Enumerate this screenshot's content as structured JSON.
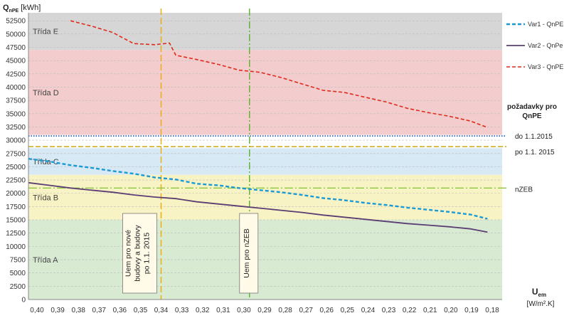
{
  "chart_data": {
    "type": "line",
    "ylabel_main": "Q",
    "ylabel_sub": "nPE",
    "ylabel_unit": "[kWh]",
    "xlabel_main": "U",
    "xlabel_sub": "em",
    "xlabel_unit": "[W/m².K]",
    "x_ticks": [
      "0,40",
      "0,39",
      "0,38",
      "0,37",
      "0,36",
      "0,35",
      "0,34",
      "0,33",
      "0,32",
      "0,31",
      "0,30",
      "0,29",
      "0,28",
      "0,27",
      "0,26",
      "0,25",
      "0,24",
      "0,23",
      "0,22",
      "0,21",
      "0,20",
      "0,19",
      "0,18"
    ],
    "y_ticks": [
      0,
      2500,
      5000,
      7500,
      10000,
      12500,
      15000,
      17500,
      20000,
      22500,
      25000,
      27500,
      30000,
      32500,
      35000,
      37500,
      40000,
      42500,
      45000,
      47500,
      50000,
      52500
    ],
    "xlim": [
      0.4,
      0.175
    ],
    "ylim": [
      0,
      54000
    ],
    "grid": true,
    "classes": [
      {
        "label": "Třída A",
        "from": 0,
        "to": 15000,
        "color": "#d9ead3"
      },
      {
        "label": "Třída B",
        "from": 15000,
        "to": 23500,
        "color": "#f7f3c4"
      },
      {
        "label": "Třída C",
        "from": 23500,
        "to": 28500,
        "color": "#d6e9f5"
      },
      {
        "label": "Třída D",
        "from": 31000,
        "to": 47000,
        "color": "#f3cdcd"
      },
      {
        "label": "Třída E",
        "from": 47000,
        "to": 54000,
        "color": "#d6d6d6"
      }
    ],
    "series": [
      {
        "name": "Var1 - QnPE",
        "color": "#1b9ad6",
        "x": [
          0.4,
          0.39,
          0.38,
          0.37,
          0.36,
          0.35,
          0.34,
          0.33,
          0.32,
          0.31,
          0.3,
          0.29,
          0.28,
          0.27,
          0.26,
          0.25,
          0.24,
          0.23,
          0.22,
          0.21,
          0.2,
          0.19,
          0.182
        ],
        "y": [
          26500,
          26000,
          25300,
          24800,
          24200,
          23700,
          23000,
          22600,
          21800,
          21500,
          21000,
          20600,
          20200,
          19700,
          19100,
          18700,
          18200,
          17800,
          17300,
          16900,
          16500,
          16000,
          15200
        ]
      },
      {
        "name": "Var2 - QnPe",
        "color": "#5a3d73",
        "x": [
          0.4,
          0.39,
          0.38,
          0.37,
          0.36,
          0.35,
          0.34,
          0.33,
          0.32,
          0.31,
          0.3,
          0.29,
          0.28,
          0.27,
          0.26,
          0.25,
          0.24,
          0.23,
          0.22,
          0.21,
          0.2,
          0.19,
          0.182
        ],
        "y": [
          22000,
          21500,
          21000,
          20600,
          20200,
          19700,
          19300,
          19000,
          18400,
          18000,
          17600,
          17200,
          16800,
          16400,
          15900,
          15500,
          15100,
          14700,
          14300,
          14000,
          13700,
          13300,
          12700
        ]
      },
      {
        "name": "Var3 - QnPE",
        "color": "#e02a1b",
        "x": [
          0.38,
          0.37,
          0.36,
          0.35,
          0.34,
          0.333,
          0.33,
          0.32,
          0.31,
          0.3,
          0.29,
          0.28,
          0.27,
          0.26,
          0.25,
          0.24,
          0.23,
          0.22,
          0.21,
          0.2,
          0.19,
          0.182
        ],
        "y": [
          52500,
          51500,
          50300,
          48200,
          48000,
          48300,
          46000,
          45200,
          44300,
          43200,
          42800,
          41800,
          40600,
          39400,
          39000,
          38100,
          37200,
          36000,
          35200,
          34500,
          33600,
          32400
        ]
      }
    ],
    "thresholds": [
      {
        "label": "do 1.1.2015",
        "value": 30800,
        "color": "#1f5fbf"
      },
      {
        "label": "po 1.1. 2015",
        "value": 28800,
        "color": "#c8a000"
      },
      {
        "label": "nZEB",
        "value": 21000,
        "color": "#8dc63f"
      }
    ],
    "requirements_title": "požadavky pro QnPE",
    "vlines": [
      {
        "x": 0.337,
        "label": "Uem pro nové budovy a budovy po 1.1. 2015",
        "color": "#f2a900"
      },
      {
        "x": 0.295,
        "label": "Uem pro nZEB",
        "color": "#5cb030"
      }
    ]
  }
}
